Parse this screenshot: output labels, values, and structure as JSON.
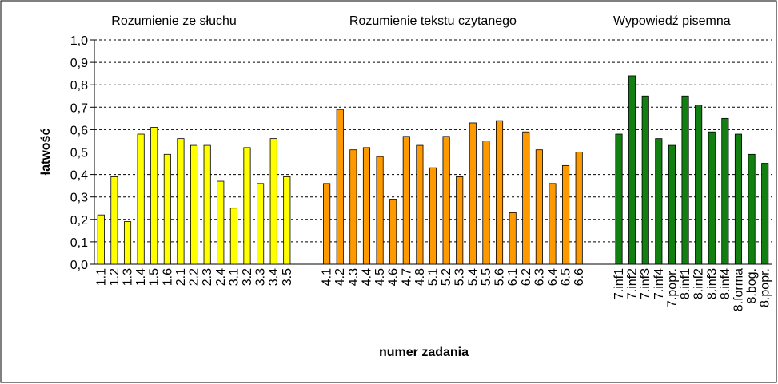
{
  "chart_data": {
    "type": "bar",
    "xlabel": "numer zadania",
    "ylabel": "łatwość",
    "categories": [
      "1.1",
      "1.2",
      "1.3",
      "1.4",
      "1.5",
      "1.6",
      "2.1",
      "2.2",
      "2.3",
      "2.4",
      "3.1",
      "3.2",
      "3.3",
      "3.4",
      "3.5",
      null,
      null,
      "4.1",
      "4.2",
      "4.3",
      "4.4",
      "4.5",
      "4.6",
      "4.7",
      "4.8",
      "5.1",
      "5.2",
      "5.3",
      "5.4",
      "5.5",
      "5.6",
      "6.1",
      "6.2",
      "6.3",
      "6.4",
      "6.5",
      "6.6",
      null,
      null,
      "7.inf1",
      "7.inf2",
      "7.inf3",
      "7.inf4",
      "7.popr.",
      "8.inf1",
      "8.inf2",
      "8.inf3",
      "8.inf4",
      "8.forma",
      "8.bog.",
      "8.popr."
    ],
    "series": [
      {
        "name": "Rozumienie ze słuchu",
        "color": "#ffff00",
        "values": [
          0.22,
          0.39,
          0.19,
          0.58,
          0.61,
          0.49,
          0.56,
          0.53,
          0.53,
          0.37,
          0.25,
          0.52,
          0.36,
          0.56,
          0.39,
          null,
          null,
          null,
          null,
          null,
          null,
          null,
          null,
          null,
          null,
          null,
          null,
          null,
          null,
          null,
          null,
          null,
          null,
          null,
          null,
          null,
          null,
          null,
          null,
          null,
          null,
          null,
          null,
          null,
          null,
          null,
          null,
          null,
          null,
          null,
          null
        ]
      },
      {
        "name": "Rozumienie tekstu czytanego",
        "color": "#ff9900",
        "values": [
          null,
          null,
          null,
          null,
          null,
          null,
          null,
          null,
          null,
          null,
          null,
          null,
          null,
          null,
          null,
          null,
          null,
          0.36,
          0.69,
          0.51,
          0.52,
          0.48,
          0.29,
          0.57,
          0.53,
          0.43,
          0.57,
          0.39,
          0.63,
          0.55,
          0.64,
          0.23,
          0.59,
          0.51,
          0.36,
          0.44,
          0.5,
          null,
          null,
          null,
          null,
          null,
          null,
          null,
          null,
          null,
          null,
          null,
          null,
          null,
          null
        ]
      },
      {
        "name": "Wypowiedź pisemna",
        "color": "#118011",
        "values": [
          null,
          null,
          null,
          null,
          null,
          null,
          null,
          null,
          null,
          null,
          null,
          null,
          null,
          null,
          null,
          null,
          null,
          null,
          null,
          null,
          null,
          null,
          null,
          null,
          null,
          null,
          null,
          null,
          null,
          null,
          null,
          null,
          null,
          null,
          null,
          null,
          null,
          null,
          null,
          0.58,
          0.84,
          0.75,
          0.56,
          0.53,
          0.75,
          0.71,
          0.59,
          0.65,
          0.58,
          0.49,
          0.45
        ]
      }
    ],
    "ylim": [
      0,
      1
    ],
    "yticks": [
      {
        "value": 0,
        "label": "0,0"
      },
      {
        "value": 0.1,
        "label": "0,1"
      },
      {
        "value": 0.2,
        "label": "0,2"
      },
      {
        "value": 0.3,
        "label": "0,3"
      },
      {
        "value": 0.4,
        "label": "0,4"
      },
      {
        "value": 0.5,
        "label": "0,5"
      },
      {
        "value": 0.6,
        "label": "0,6"
      },
      {
        "value": 0.7,
        "label": "0,7"
      },
      {
        "value": 0.8,
        "label": "0,8"
      },
      {
        "value": 0.9,
        "label": "0,9"
      },
      {
        "value": 1,
        "label": "1,0"
      }
    ],
    "grid": true
  }
}
